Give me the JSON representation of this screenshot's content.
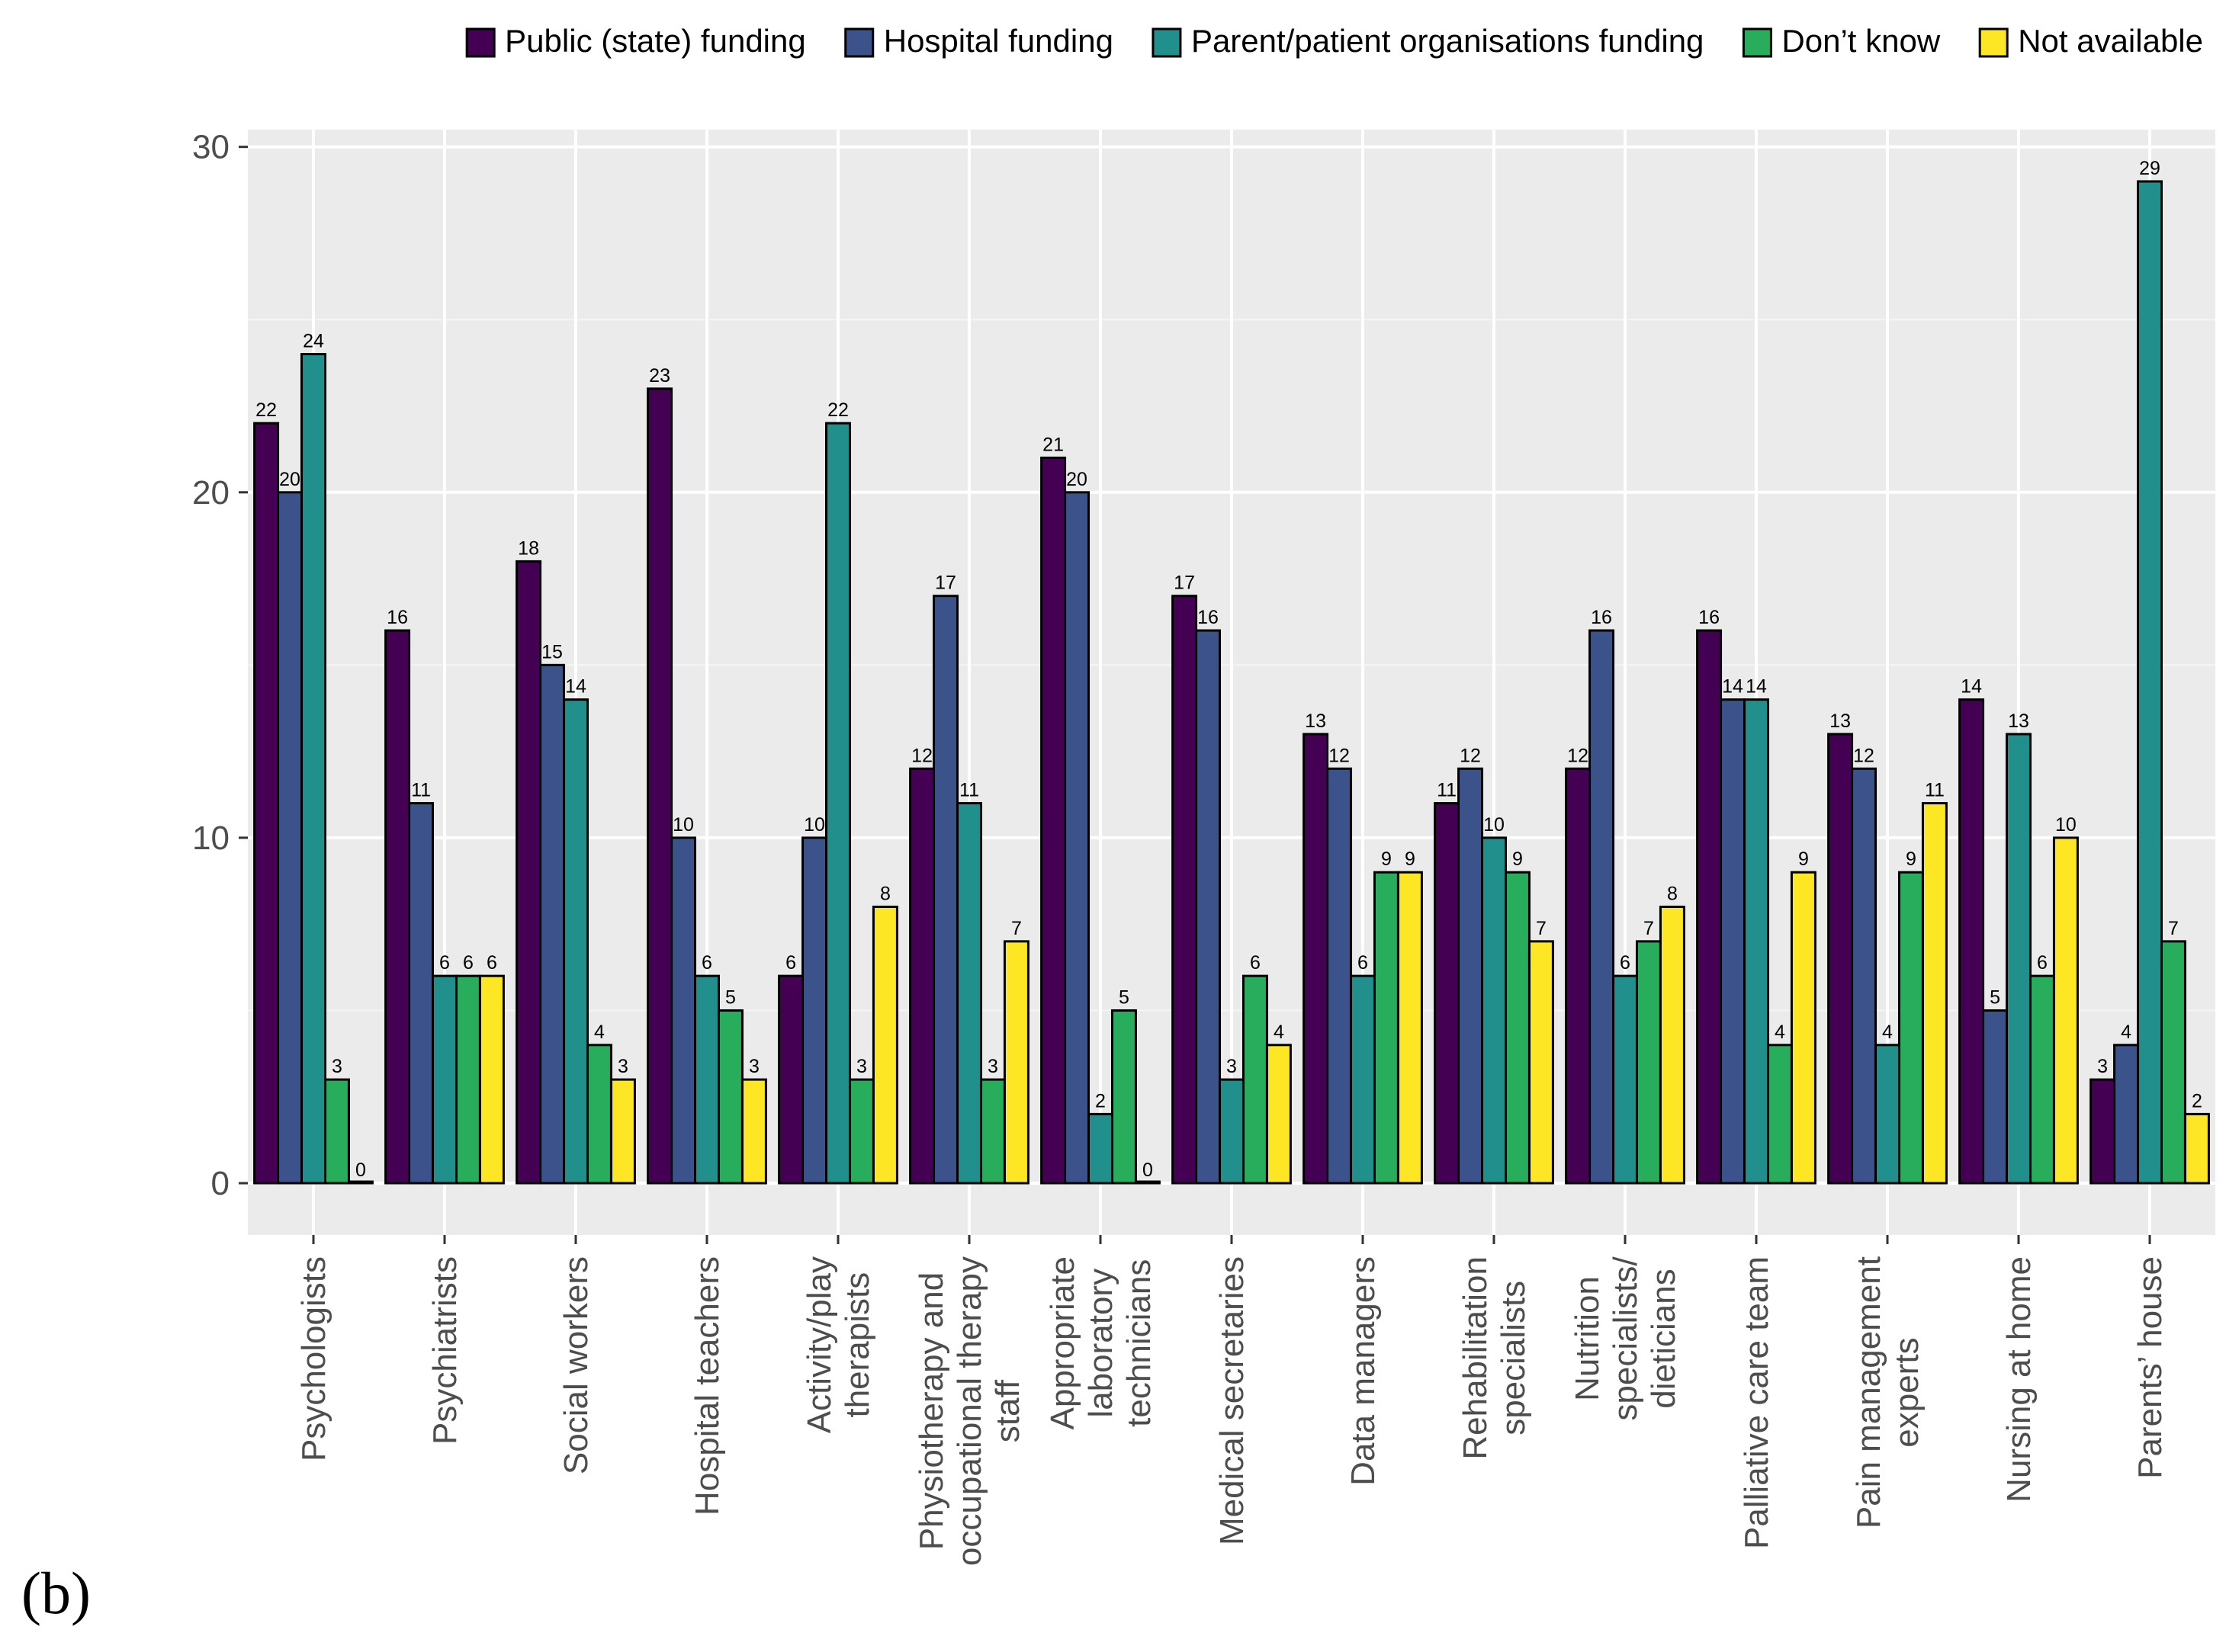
{
  "panel_label": "(b)",
  "colors": {
    "panel_bg": "#EBEBEB",
    "grid_major": "#FFFFFF",
    "grid_minor": "#F5F5F5",
    "bar_outline": "#000000",
    "axis_text": "#4D4D4D"
  },
  "chart_data": {
    "type": "bar",
    "title": "",
    "xlabel": "",
    "ylabel": "",
    "ylim": [
      -1.5,
      30.5
    ],
    "yticks": [
      0,
      10,
      20,
      30
    ],
    "grid": true,
    "legend_position": "top",
    "categories": [
      "Psychologists",
      "Psychiatrists",
      "Social workers",
      "Hospital teachers",
      "Activity/play therapists",
      "Physiotherapy and occupational therapy staff",
      "Appropriate laboratory technicians",
      "Medical secretaries",
      "Data managers",
      "Rehabilitation specialists",
      "Nutrition specialists/ dieticians",
      "Palliative care team",
      "Pain management experts",
      "Nursing at home",
      "Parents’ house"
    ],
    "category_lines": [
      [
        "Psychologists"
      ],
      [
        "Psychiatrists"
      ],
      [
        "Social workers"
      ],
      [
        "Hospital teachers"
      ],
      [
        "Activity/play",
        "therapists"
      ],
      [
        "Physiotherapy and",
        "occupational therapy",
        "staff"
      ],
      [
        "Appropriate",
        "laboratory",
        "technicians"
      ],
      [
        "Medical secretaries"
      ],
      [
        "Data managers"
      ],
      [
        "Rehabilitation",
        "specialists"
      ],
      [
        "Nutrition",
        "specialists/",
        "dieticians"
      ],
      [
        "Palliative care team"
      ],
      [
        "Pain management",
        "experts"
      ],
      [
        "Nursing at home"
      ],
      [
        "Parents’ house"
      ]
    ],
    "series": [
      {
        "name": "Public (state) funding",
        "color": "#440154",
        "values": [
          22,
          16,
          18,
          23,
          6,
          12,
          21,
          17,
          13,
          11,
          12,
          16,
          13,
          14,
          3
        ]
      },
      {
        "name": "Hospital funding",
        "color": "#3B528B",
        "values": [
          20,
          11,
          15,
          10,
          10,
          17,
          20,
          16,
          12,
          12,
          16,
          14,
          12,
          5,
          4
        ]
      },
      {
        "name": "Parent/patient organisations funding",
        "color": "#21908C",
        "values": [
          24,
          6,
          14,
          6,
          22,
          11,
          2,
          3,
          6,
          10,
          6,
          14,
          4,
          13,
          29
        ]
      },
      {
        "name": "Don’t know",
        "color": "#27AD5B",
        "values": [
          3,
          6,
          4,
          5,
          3,
          3,
          5,
          6,
          9,
          9,
          7,
          4,
          9,
          6,
          7
        ]
      },
      {
        "name": "Not available",
        "color": "#FDE725",
        "values": [
          0,
          6,
          3,
          3,
          8,
          7,
          0,
          4,
          9,
          7,
          8,
          9,
          11,
          10,
          2
        ]
      }
    ]
  }
}
